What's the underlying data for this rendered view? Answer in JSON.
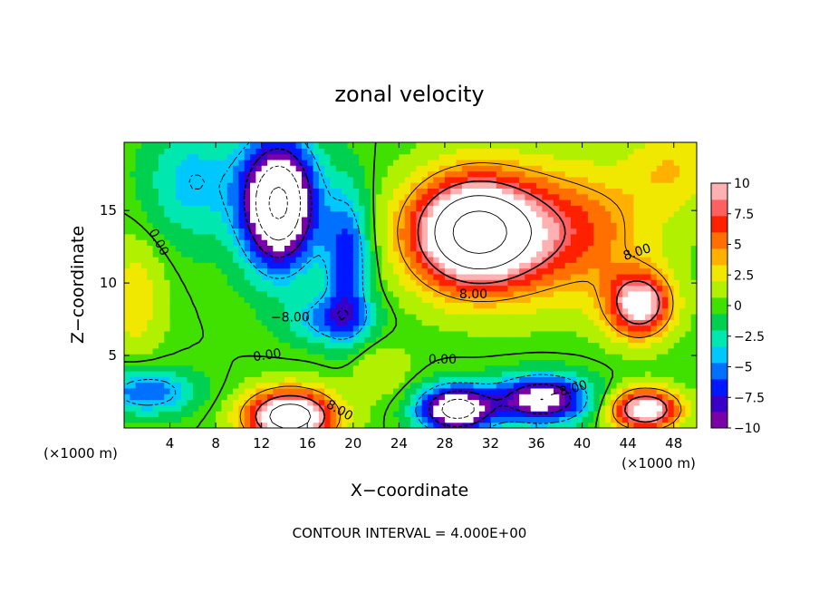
{
  "chart_data": {
    "type": "heatmap",
    "title": "zonal velocity",
    "xlabel": "X−coordinate",
    "ylabel": "Z−coordinate",
    "x_unit_left": "(×1000 m)",
    "x_unit_right": "(×1000 m)",
    "xlim": [
      0,
      50
    ],
    "ylim": [
      0,
      19.7
    ],
    "xticks": [
      {
        "v": 4,
        "label": "4"
      },
      {
        "v": 8,
        "label": "8"
      },
      {
        "v": 12,
        "label": "12"
      },
      {
        "v": 16,
        "label": "16"
      },
      {
        "v": 20,
        "label": "20"
      },
      {
        "v": 24,
        "label": "24"
      },
      {
        "v": 28,
        "label": "28"
      },
      {
        "v": 32,
        "label": "32"
      },
      {
        "v": 36,
        "label": "36"
      },
      {
        "v": 40,
        "label": "40"
      },
      {
        "v": 44,
        "label": "44"
      },
      {
        "v": 48,
        "label": "48"
      }
    ],
    "yticks": [
      {
        "v": 5,
        "label": "5"
      },
      {
        "v": 10,
        "label": "10"
      },
      {
        "v": 15,
        "label": "15"
      }
    ],
    "colorbar": {
      "vmin": -10,
      "vmax": 10,
      "ticks": [
        {
          "v": 10,
          "label": "10"
        },
        {
          "v": 7.5,
          "label": "7.5"
        },
        {
          "v": 5,
          "label": "5"
        },
        {
          "v": 2.5,
          "label": "2.5"
        },
        {
          "v": 0,
          "label": "0"
        },
        {
          "v": -2.5,
          "label": "−2.5"
        },
        {
          "v": -5,
          "label": "−5"
        },
        {
          "v": -7.5,
          "label": "−7.5"
        },
        {
          "v": -10,
          "label": "−10"
        }
      ],
      "colors": [
        "#7a00a8",
        "#3a00c8",
        "#0018ff",
        "#0070ff",
        "#00c8ff",
        "#00e8b0",
        "#00d050",
        "#40e000",
        "#b0f000",
        "#f0e800",
        "#ffb000",
        "#ff7000",
        "#ff2000",
        "#ff6060",
        "#ffb0b0"
      ]
    },
    "field_components": [
      {
        "cx": 30.5,
        "cz": 13.5,
        "sx": 5.5,
        "sz": 3.8,
        "amp": 17
      },
      {
        "cx": 45,
        "cz": 8.5,
        "sx": 2.8,
        "sz": 2.2,
        "amp": 11
      },
      {
        "cx": 39,
        "cz": 13.5,
        "sx": 7,
        "sz": 4.5,
        "amp": 6
      },
      {
        "cx": 14.5,
        "cz": 0.8,
        "sx": 3.8,
        "sz": 1.8,
        "amp": 15
      },
      {
        "cx": 13.5,
        "cz": 15.5,
        "sx": 3.2,
        "sz": 4.3,
        "amp": -17
      },
      {
        "cx": 19.5,
        "cz": 11.5,
        "sx": 2.0,
        "sz": 5,
        "amp": -7
      },
      {
        "cx": 18,
        "cz": 7.5,
        "sx": 3.5,
        "sz": 1.6,
        "amp": -5
      },
      {
        "cx": 29,
        "cz": 1.3,
        "sx": 3.2,
        "sz": 1.6,
        "amp": -14
      },
      {
        "cx": 36.5,
        "cz": 2.0,
        "sx": 4,
        "sz": 1.6,
        "amp": -12
      },
      {
        "cx": 45.5,
        "cz": 1.3,
        "sx": 3,
        "sz": 1.4,
        "amp": 12
      },
      {
        "cx": 6,
        "cz": 17,
        "sx": 4,
        "sz": 4,
        "amp": -4
      },
      {
        "cx": 1,
        "cz": 9,
        "sx": 2.5,
        "sz": 4,
        "amp": 3
      },
      {
        "cx": 48,
        "cz": 18,
        "sx": 4,
        "sz": 3,
        "amp": 3
      },
      {
        "cx": 2,
        "cz": 2.5,
        "sx": 4,
        "sz": 1.5,
        "amp": -6
      },
      {
        "cx": 22,
        "cz": 4,
        "sx": 3,
        "sz": 2,
        "amp": 2
      }
    ],
    "contour_labels": [
      {
        "x": 3.0,
        "z": 12.8,
        "text": "0.00",
        "rotate": 62
      },
      {
        "x": 14.5,
        "z": 7.6,
        "text": "−8.00",
        "rotate": 0
      },
      {
        "x": 12.5,
        "z": 5.0,
        "text": "0.00",
        "rotate": -8
      },
      {
        "x": 30.5,
        "z": 9.2,
        "text": "8.00",
        "rotate": 0
      },
      {
        "x": 44.8,
        "z": 12.1,
        "text": "8.00",
        "rotate": -18
      },
      {
        "x": 27.8,
        "z": 4.7,
        "text": "0.00",
        "rotate": 0
      },
      {
        "x": 18.8,
        "z": 1.2,
        "text": "8.00",
        "rotate": 30
      },
      {
        "x": 38.8,
        "z": 2.6,
        "text": "−8.00",
        "rotate": -16
      }
    ],
    "annotation": "CONTOUR INTERVAL = 4.000E+00"
  }
}
